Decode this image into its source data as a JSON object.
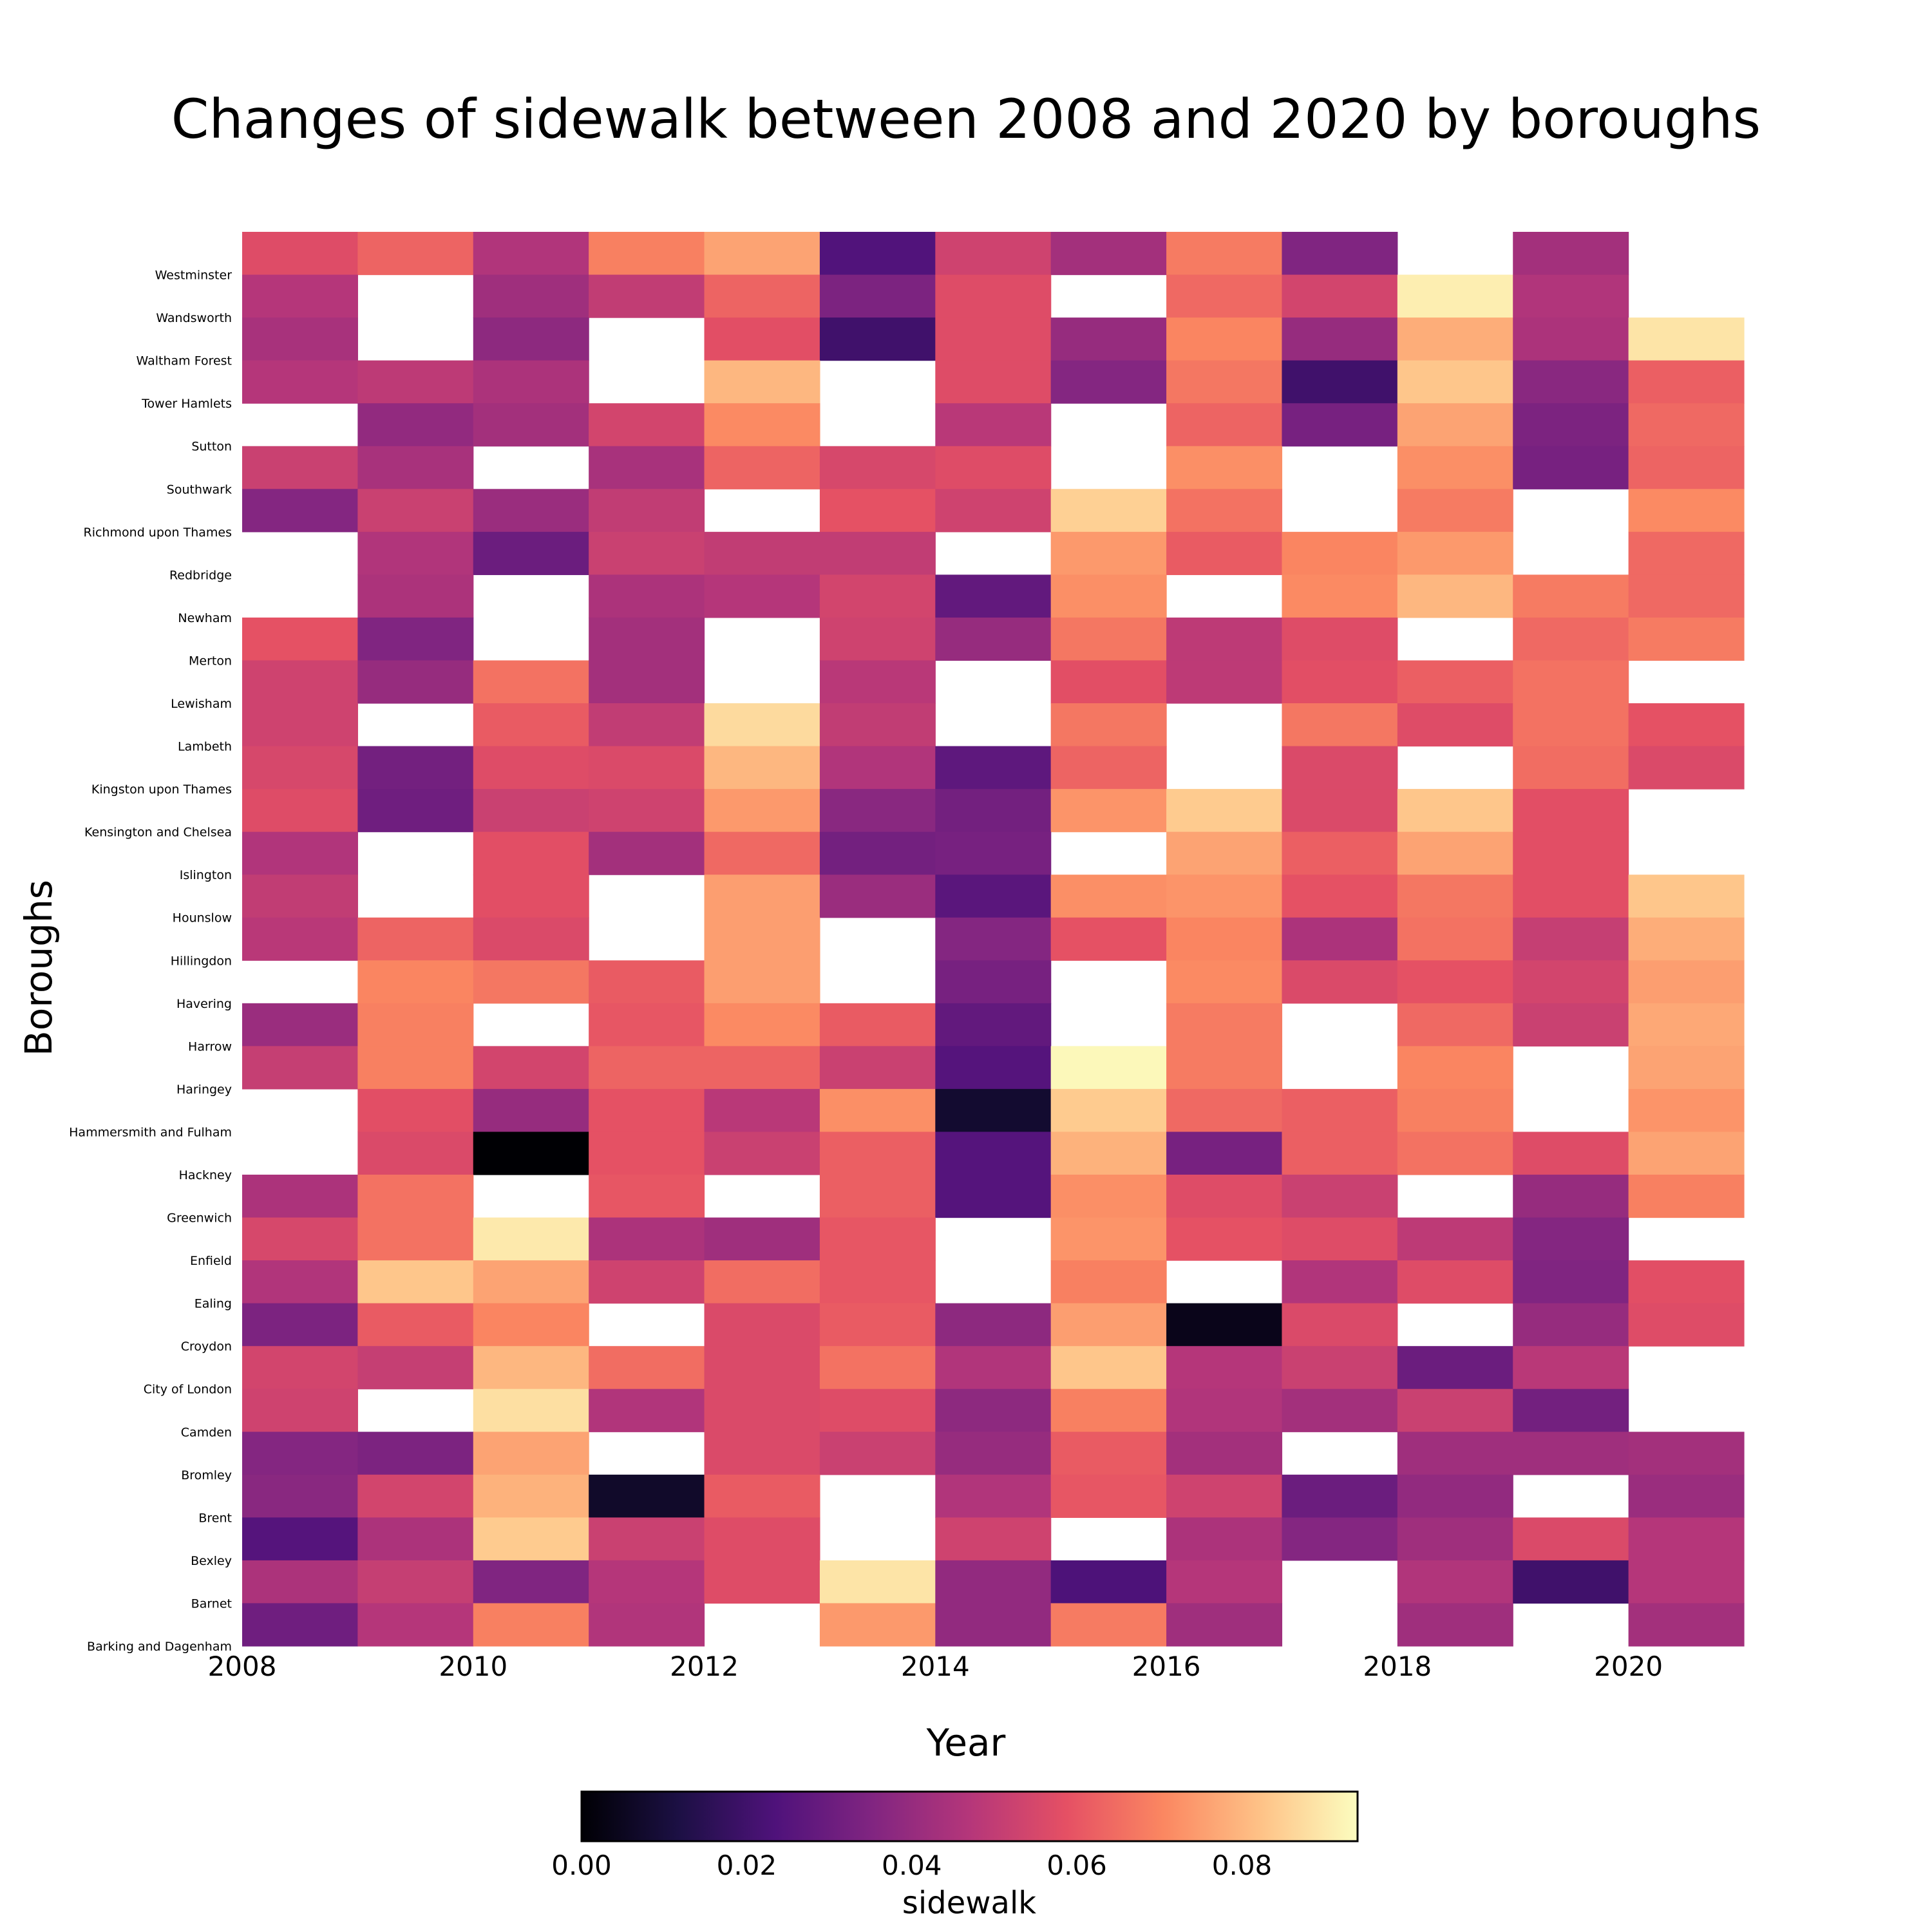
{
  "chart_data": {
    "type": "heatmap",
    "title": "Changes of sidewalk between 2008 and 2020 by boroughs",
    "xlabel": "Year",
    "ylabel": "Boroughs",
    "colorbar_label": "sidewalk",
    "colormap": "magma",
    "vmin": 0.0,
    "vmax": 0.094,
    "x_tick_labels": [
      "2008",
      "2010",
      "2012",
      "2014",
      "2016",
      "2018",
      "2020"
    ],
    "colorbar_ticks": [
      "0.00",
      "0.02",
      "0.04",
      "0.06",
      "0.08"
    ],
    "years": [
      2008,
      2009,
      2010,
      2011,
      2012,
      2013,
      2014,
      2015,
      2016,
      2017,
      2018,
      2019,
      2020
    ],
    "boroughs_top_to_bottom": [
      "Westminster",
      "Wandsworth",
      "Waltham Forest",
      "Tower Hamlets",
      "Sutton",
      "Southwark",
      "Richmond upon Thames",
      "Redbridge",
      "Newham",
      "Merton",
      "Lewisham",
      "Lambeth",
      "Kingston upon Thames",
      "Kensington and Chelsea",
      "Islington",
      "Hounslow",
      "Hillingdon",
      "Havering",
      "Harrow",
      "Haringey",
      "Hammersmith and Fulham",
      "Hackney",
      "Greenwich",
      "Enfield",
      "Ealing",
      "Croydon",
      "City of London",
      "Camden",
      "Bromley",
      "Brent",
      "Bexley",
      "Barnet",
      "Barking and Dagenham"
    ],
    "values": [
      [
        0.057,
        0.063,
        0.046,
        0.069,
        0.076,
        0.024,
        0.053,
        0.043,
        0.068,
        0.035,
        null,
        0.043,
        null
      ],
      [
        0.047,
        null,
        0.042,
        0.05,
        0.063,
        0.034,
        0.057,
        null,
        0.064,
        0.054,
        0.091,
        0.046,
        null
      ],
      [
        0.044,
        null,
        0.038,
        null,
        0.058,
        0.02,
        0.057,
        0.04,
        0.07,
        0.04,
        0.078,
        0.045,
        0.089
      ],
      [
        0.047,
        0.049,
        0.045,
        null,
        0.08,
        null,
        0.057,
        0.036,
        0.067,
        0.02,
        0.083,
        0.037,
        0.062
      ],
      [
        null,
        0.039,
        0.043,
        0.054,
        0.071,
        null,
        0.048,
        null,
        0.063,
        0.033,
        0.076,
        0.034,
        0.064
      ],
      [
        0.052,
        0.044,
        null,
        0.044,
        0.063,
        0.055,
        0.057,
        null,
        0.072,
        null,
        0.072,
        0.033,
        0.063
      ],
      [
        0.036,
        0.052,
        0.041,
        0.05,
        null,
        0.059,
        0.053,
        0.085,
        0.066,
        null,
        0.068,
        null,
        0.071
      ],
      [
        null,
        0.046,
        0.03,
        0.052,
        0.05,
        0.05,
        null,
        0.074,
        0.061,
        0.07,
        0.074,
        null,
        0.064
      ],
      [
        null,
        0.045,
        null,
        0.045,
        0.047,
        0.054,
        0.028,
        0.072,
        null,
        0.071,
        0.08,
        0.068,
        0.064
      ],
      [
        0.059,
        0.035,
        null,
        0.043,
        null,
        0.053,
        0.04,
        0.067,
        0.049,
        0.057,
        null,
        0.064,
        0.068
      ],
      [
        0.053,
        0.04,
        0.066,
        0.043,
        null,
        0.048,
        null,
        0.058,
        0.049,
        0.058,
        0.062,
        0.066,
        null
      ],
      [
        0.053,
        null,
        0.061,
        0.05,
        0.087,
        0.05,
        null,
        0.067,
        null,
        0.067,
        0.057,
        0.066,
        0.059
      ],
      [
        0.055,
        0.032,
        0.057,
        0.056,
        0.08,
        0.046,
        0.027,
        0.063,
        null,
        0.056,
        null,
        0.065,
        0.056
      ],
      [
        0.057,
        0.031,
        0.052,
        0.053,
        0.074,
        0.037,
        0.032,
        0.073,
        0.084,
        0.056,
        0.083,
        0.058,
        null
      ],
      [
        0.046,
        null,
        0.058,
        0.043,
        0.064,
        0.032,
        0.033,
        null,
        0.076,
        0.062,
        0.076,
        0.058,
        null
      ],
      [
        0.05,
        null,
        0.058,
        null,
        0.075,
        0.041,
        0.026,
        0.072,
        0.073,
        0.059,
        0.067,
        0.058,
        0.083
      ],
      [
        0.048,
        0.063,
        0.056,
        null,
        0.075,
        null,
        0.036,
        0.059,
        0.07,
        0.045,
        0.066,
        0.051,
        0.078
      ],
      [
        null,
        0.07,
        0.067,
        0.061,
        0.075,
        null,
        0.033,
        null,
        0.071,
        0.056,
        0.059,
        0.054,
        0.075
      ],
      [
        0.041,
        0.069,
        null,
        0.06,
        0.071,
        0.061,
        0.028,
        null,
        0.068,
        null,
        0.064,
        0.052,
        0.077
      ],
      [
        0.051,
        0.069,
        0.054,
        0.063,
        0.063,
        0.052,
        0.025,
        0.093,
        0.068,
        null,
        0.07,
        null,
        0.076
      ],
      [
        null,
        0.058,
        0.04,
        0.059,
        0.048,
        0.072,
        0.008,
        0.084,
        0.064,
        0.062,
        0.069,
        null,
        0.073
      ],
      [
        null,
        0.056,
        0.0,
        0.059,
        0.052,
        0.062,
        0.025,
        0.079,
        0.033,
        0.062,
        0.066,
        0.057,
        0.076
      ],
      [
        0.045,
        0.066,
        null,
        0.06,
        null,
        0.062,
        0.025,
        0.072,
        0.057,
        0.052,
        null,
        0.04,
        0.069
      ],
      [
        0.055,
        0.066,
        0.09,
        0.045,
        0.042,
        0.06,
        null,
        0.073,
        0.059,
        0.057,
        0.049,
        0.036,
        null
      ],
      [
        0.046,
        0.083,
        0.076,
        0.053,
        0.065,
        0.06,
        null,
        0.069,
        null,
        0.046,
        0.057,
        0.035,
        0.058
      ],
      [
        0.034,
        0.061,
        0.07,
        null,
        0.056,
        0.061,
        0.038,
        0.075,
        0.004,
        0.056,
        null,
        0.04,
        0.057
      ],
      [
        0.054,
        0.051,
        0.08,
        0.065,
        0.056,
        0.066,
        0.046,
        0.083,
        0.047,
        0.052,
        0.03,
        0.048,
        null
      ],
      [
        0.053,
        null,
        0.088,
        0.046,
        0.056,
        0.057,
        0.038,
        0.069,
        0.046,
        0.043,
        0.052,
        0.032,
        null
      ],
      [
        0.036,
        0.034,
        0.076,
        null,
        0.056,
        0.052,
        0.04,
        0.061,
        0.043,
        null,
        0.042,
        0.042,
        0.043
      ],
      [
        0.037,
        0.054,
        0.079,
        0.007,
        0.061,
        null,
        0.046,
        0.06,
        0.053,
        0.03,
        0.039,
        null,
        0.041
      ],
      [
        0.025,
        0.045,
        0.084,
        0.052,
        0.057,
        null,
        0.053,
        null,
        0.045,
        0.036,
        0.042,
        0.056,
        0.047
      ],
      [
        0.045,
        0.051,
        0.035,
        0.047,
        0.057,
        0.089,
        0.039,
        0.023,
        0.047,
        null,
        0.046,
        0.02,
        0.047
      ],
      [
        0.031,
        0.047,
        0.069,
        0.046,
        null,
        0.074,
        0.039,
        0.068,
        0.042,
        null,
        0.042,
        null,
        0.043
      ]
    ]
  }
}
